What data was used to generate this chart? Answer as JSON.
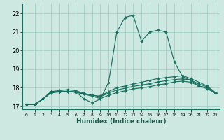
{
  "xlabel": "Humidex (Indice chaleur)",
  "bg_color": "#cce8e0",
  "grid_color": "#99ccc0",
  "line_color": "#1a7060",
  "xlim": [
    -0.5,
    23.5
  ],
  "ylim": [
    16.85,
    22.5
  ],
  "yticks": [
    17,
    18,
    19,
    20,
    21,
    22
  ],
  "xticks": [
    0,
    1,
    2,
    3,
    4,
    5,
    6,
    7,
    8,
    9,
    10,
    11,
    12,
    13,
    14,
    15,
    16,
    17,
    18,
    19,
    20,
    21,
    22,
    23
  ],
  "series": [
    [
      17.1,
      17.1,
      17.4,
      17.8,
      17.8,
      17.8,
      17.8,
      17.4,
      17.2,
      17.4,
      18.3,
      21.0,
      21.8,
      21.9,
      20.5,
      21.0,
      21.1,
      21.0,
      19.4,
      18.6,
      18.4,
      18.1,
      18.0,
      17.7
    ],
    [
      17.1,
      17.1,
      17.4,
      17.8,
      17.85,
      17.9,
      17.85,
      17.7,
      17.6,
      17.55,
      17.8,
      18.0,
      18.1,
      18.2,
      18.3,
      18.4,
      18.5,
      18.55,
      18.6,
      18.65,
      18.5,
      18.3,
      18.1,
      17.75
    ],
    [
      17.1,
      17.1,
      17.4,
      17.75,
      17.8,
      17.82,
      17.78,
      17.68,
      17.6,
      17.52,
      17.72,
      17.88,
      17.98,
      18.08,
      18.15,
      18.22,
      18.32,
      18.38,
      18.44,
      18.48,
      18.42,
      18.2,
      18.05,
      17.72
    ],
    [
      17.1,
      17.1,
      17.4,
      17.72,
      17.78,
      17.8,
      17.76,
      17.66,
      17.55,
      17.42,
      17.6,
      17.74,
      17.84,
      17.94,
      18.0,
      18.06,
      18.16,
      18.22,
      18.32,
      18.36,
      18.3,
      18.1,
      17.95,
      17.72
    ]
  ]
}
